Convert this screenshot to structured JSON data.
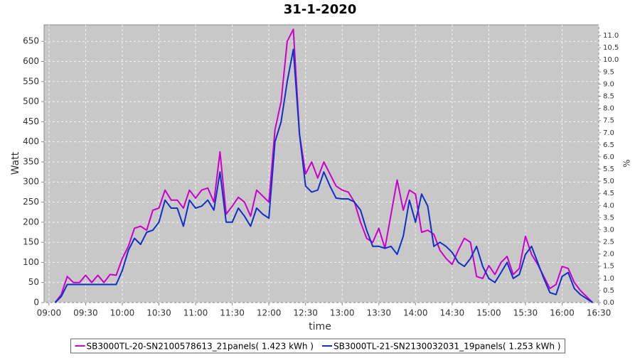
{
  "chart_data": {
    "type": "line",
    "title": "31-1-2020",
    "xlabel": "time",
    "ylabel": "Watt",
    "y2label": "%",
    "x": [
      "09:05",
      "09:10",
      "09:15",
      "09:20",
      "09:25",
      "09:30",
      "09:35",
      "09:40",
      "09:45",
      "09:50",
      "09:55",
      "10:00",
      "10:05",
      "10:10",
      "10:15",
      "10:20",
      "10:25",
      "10:30",
      "10:35",
      "10:40",
      "10:45",
      "10:50",
      "10:55",
      "11:00",
      "11:05",
      "11:10",
      "11:15",
      "11:20",
      "11:25",
      "11:30",
      "11:35",
      "11:40",
      "11:45",
      "11:50",
      "11:55",
      "12:00",
      "12:05",
      "12:10",
      "12:15",
      "12:20",
      "12:25",
      "12:30",
      "12:35",
      "12:40",
      "12:45",
      "12:50",
      "12:55",
      "13:00",
      "13:05",
      "13:10",
      "13:15",
      "13:20",
      "13:25",
      "13:30",
      "13:35",
      "13:40",
      "13:45",
      "13:50",
      "13:55",
      "14:00",
      "14:05",
      "14:10",
      "14:15",
      "14:20",
      "14:25",
      "14:30",
      "14:35",
      "14:40",
      "14:45",
      "14:50",
      "14:55",
      "15:00",
      "15:05",
      "15:10",
      "15:15",
      "15:20",
      "15:25",
      "15:30",
      "15:35",
      "15:40",
      "15:45",
      "15:50",
      "15:55",
      "16:00",
      "16:05",
      "16:10",
      "16:15",
      "16:20",
      "16:25"
    ],
    "series": [
      {
        "name": "SB3000TL-20-SN2100578613_21panels( 1.423 kWh )",
        "color": "#cc00cc",
        "values": [
          0,
          20,
          65,
          50,
          50,
          68,
          50,
          68,
          50,
          70,
          68,
          110,
          140,
          185,
          190,
          180,
          230,
          235,
          280,
          255,
          255,
          235,
          280,
          260,
          280,
          285,
          250,
          375,
          220,
          240,
          262,
          250,
          215,
          280,
          265,
          250,
          430,
          500,
          650,
          680,
          420,
          320,
          350,
          310,
          350,
          320,
          290,
          280,
          275,
          250,
          200,
          160,
          150,
          185,
          135,
          220,
          305,
          230,
          280,
          270,
          175,
          180,
          170,
          130,
          110,
          95,
          130,
          160,
          150,
          65,
          60,
          92,
          70,
          100,
          115,
          70,
          85,
          165,
          120,
          95,
          65,
          35,
          45,
          90,
          85,
          50,
          30,
          15,
          0
        ]
      },
      {
        "name": "SB3000TL-21-SN2130032031_19panels( 1.253 kWh )",
        "color": "#1030c8",
        "values": [
          0,
          15,
          45,
          45,
          45,
          45,
          45,
          45,
          45,
          45,
          45,
          80,
          130,
          160,
          145,
          175,
          180,
          200,
          255,
          235,
          235,
          190,
          255,
          235,
          240,
          255,
          230,
          325,
          200,
          200,
          235,
          215,
          190,
          235,
          220,
          210,
          400,
          450,
          550,
          630,
          420,
          290,
          275,
          280,
          325,
          290,
          260,
          258,
          258,
          250,
          230,
          180,
          140,
          140,
          135,
          140,
          120,
          165,
          255,
          200,
          270,
          240,
          140,
          150,
          140,
          125,
          100,
          90,
          110,
          140,
          90,
          60,
          50,
          75,
          100,
          60,
          70,
          120,
          140,
          100,
          60,
          25,
          20,
          65,
          75,
          35,
          20,
          10,
          0
        ]
      }
    ],
    "xlim": [
      "08:56",
      "16:30"
    ],
    "xticks": [
      "09:00",
      "09:30",
      "10:00",
      "10:30",
      "11:00",
      "11:30",
      "12:00",
      "12:30",
      "13:00",
      "13:30",
      "14:00",
      "14:30",
      "15:00",
      "15:30",
      "16:00",
      "16:30"
    ],
    "ylim": [
      0,
      691
    ],
    "yticks": [
      0,
      50,
      100,
      150,
      200,
      250,
      300,
      350,
      400,
      450,
      500,
      550,
      600,
      650
    ],
    "y2lim": [
      0,
      11.44
    ],
    "y2ticks": [
      {
        "value": 0,
        "label": "0.0"
      },
      0.5,
      {
        "value": 1,
        "label": "1.0"
      },
      1.5,
      {
        "value": 2,
        "label": "2.0"
      },
      2.5,
      {
        "value": 3,
        "label": "3.0"
      },
      3.5,
      {
        "value": 4,
        "label": "4.0"
      },
      4.5,
      {
        "value": 5,
        "label": "5.0"
      },
      5.5,
      {
        "value": 6,
        "label": "6.0"
      },
      6.5,
      {
        "value": 7,
        "label": "7.0"
      },
      7.5,
      {
        "value": 8,
        "label": "8.0"
      },
      8.5,
      {
        "value": 9,
        "label": "9.0"
      },
      9.5,
      {
        "value": 10,
        "label": "10.0"
      },
      10.5,
      {
        "value": 11,
        "label": "11.0"
      }
    ],
    "grid": true
  }
}
